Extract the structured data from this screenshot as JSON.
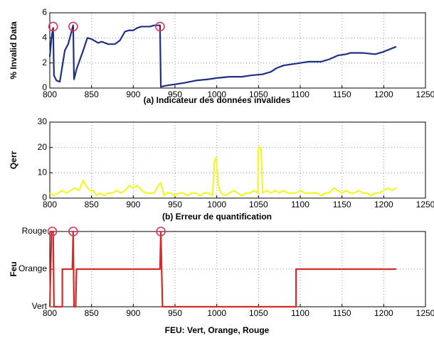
{
  "chart_data": [
    {
      "type": "line",
      "title": "(a) Indicateur des données invalides",
      "ylabel": "% Invalid Data",
      "x": [
        800,
        802,
        804,
        805,
        808,
        812,
        818,
        822,
        826,
        828,
        829,
        832,
        840,
        845,
        850,
        858,
        862,
        870,
        878,
        884,
        890,
        895,
        900,
        905,
        910,
        920,
        925,
        932,
        933,
        940,
        950,
        960,
        975,
        990,
        1000,
        1015,
        1030,
        1040,
        1055,
        1065,
        1072,
        1080,
        1090,
        1100,
        1110,
        1125,
        1135,
        1145,
        1155,
        1160,
        1175,
        1190,
        1200,
        1215
      ],
      "series": [
        {
          "color": "#1f2f86",
          "values": [
            2.5,
            4.0,
            4.8,
            1.0,
            0.6,
            0.5,
            3.0,
            3.5,
            4.5,
            5.0,
            0.7,
            1.5,
            3.0,
            4.0,
            3.9,
            3.6,
            3.7,
            3.5,
            3.5,
            3.8,
            4.5,
            4.6,
            4.6,
            4.8,
            4.9,
            4.9,
            5.0,
            5.0,
            0.1,
            0.2,
            0.3,
            0.4,
            0.6,
            0.7,
            0.8,
            0.9,
            0.9,
            1.0,
            1.1,
            1.3,
            1.6,
            1.8,
            1.9,
            2.0,
            2.1,
            2.1,
            2.3,
            2.6,
            2.7,
            2.8,
            2.8,
            2.7,
            2.9,
            3.3
          ]
        }
      ],
      "highlights": {
        "color": "#e8305a",
        "x": [
          804,
          828,
          932
        ],
        "y": [
          4.9,
          4.9,
          4.9
        ]
      },
      "xlim": [
        800,
        1250
      ],
      "xticks": [
        800,
        850,
        900,
        950,
        1000,
        1050,
        1100,
        1150,
        1200,
        1250
      ],
      "ylim": [
        0,
        6
      ],
      "yticks": [
        0,
        2,
        4,
        6
      ],
      "grid": true
    },
    {
      "type": "line",
      "title": "(b) Erreur  de quantification",
      "ylabel": "Qerr",
      "x": [
        800,
        805,
        810,
        815,
        820,
        825,
        830,
        835,
        840,
        843,
        848,
        852,
        856,
        860,
        865,
        870,
        875,
        880,
        885,
        890,
        895,
        900,
        905,
        910,
        915,
        920,
        925,
        930,
        933,
        937,
        940,
        945,
        950,
        955,
        960,
        965,
        970,
        975,
        980,
        985,
        990,
        995,
        997,
        999,
        1002,
        1005,
        1010,
        1015,
        1020,
        1025,
        1030,
        1035,
        1040,
        1045,
        1049,
        1050,
        1053,
        1055,
        1060,
        1065,
        1070,
        1075,
        1080,
        1085,
        1090,
        1095,
        1100,
        1105,
        1110,
        1115,
        1120,
        1125,
        1130,
        1135,
        1140,
        1145,
        1150,
        1155,
        1160,
        1165,
        1170,
        1175,
        1180,
        1185,
        1190,
        1195,
        1200,
        1205,
        1210,
        1215
      ],
      "series": [
        {
          "color": "#f5f52a",
          "values": [
            2,
            1,
            2,
            3,
            2,
            3,
            4,
            3,
            7,
            5,
            3,
            3,
            1,
            2,
            1,
            2,
            2,
            3,
            2,
            3,
            5,
            4,
            5,
            3,
            2,
            2,
            2,
            5,
            6,
            1,
            2,
            2,
            1,
            2,
            2,
            1,
            2,
            2,
            1,
            2,
            2,
            1,
            14,
            16,
            5,
            2,
            1,
            2,
            3,
            2,
            1,
            2,
            2,
            3,
            2,
            20,
            20,
            2,
            3,
            2,
            3,
            2,
            3,
            2,
            2,
            2,
            3,
            2,
            2,
            2,
            2,
            1,
            2,
            2,
            4,
            3,
            2,
            3,
            2,
            2,
            3,
            2,
            2,
            1,
            2,
            2,
            3,
            4,
            3,
            4
          ]
        }
      ],
      "xlim": [
        800,
        1250
      ],
      "xticks": [
        800,
        850,
        900,
        950,
        1000,
        1050,
        1100,
        1150,
        1200,
        1250
      ],
      "ylim": [
        0,
        30
      ],
      "yticks": [
        0,
        10,
        20,
        30
      ],
      "grid": true
    },
    {
      "type": "line",
      "title": "FEU: Vert, Orange, Rouge",
      "ylabel": "Feu",
      "x": [
        800,
        802,
        804,
        805,
        815,
        815,
        823,
        827,
        828,
        829,
        831,
        832,
        932,
        933,
        935,
        1095,
        1095,
        1215
      ],
      "series": [
        {
          "color": "#d42a2a",
          "values": [
            0,
            2,
            2,
            0,
            0,
            1,
            1,
            1,
            2,
            0,
            0,
            1,
            1,
            2,
            0,
            0,
            1,
            1
          ]
        }
      ],
      "highlights": {
        "color": "#e8305a",
        "x": [
          803,
          828,
          933
        ],
        "y": [
          2,
          2,
          2
        ]
      },
      "xlim": [
        800,
        1250
      ],
      "xticks": [
        800,
        850,
        900,
        950,
        1000,
        1050,
        1100,
        1150,
        1200,
        1250
      ],
      "ylim": [
        0,
        2
      ],
      "yticks": [
        {
          "value": 0,
          "label": "Vert"
        },
        {
          "value": 1,
          "label": "Orange"
        },
        {
          "value": 2,
          "label": "Rouge"
        }
      ],
      "grid": true
    }
  ]
}
